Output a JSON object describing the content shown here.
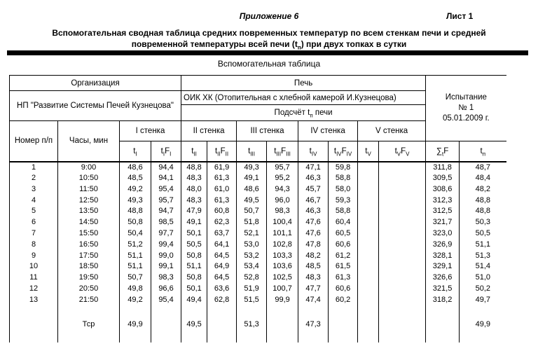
{
  "page": {
    "appendix_label": "Приложение 6",
    "sheet_label": "Лист 1",
    "title_line1": "Вспомогательная сводная таблица средних повременных температур по всем стенкам печи и средней",
    "title_line2_segments": [
      {
        "t": "повременной температуры всей печи (t"
      },
      {
        "t": "п",
        "sub": true
      },
      {
        "t": ") при двух топках в сутки"
      }
    ],
    "table_caption": "Вспомогательная таблица"
  },
  "table": {
    "org_header": "Организация",
    "org_value": "НП \"Развитие Системы Печей Кузнецова\"",
    "stove_header": "Печь",
    "stove_value": "ОИК ХК (Отопительная с хлебной камерой И.Кузнецова)",
    "calc_segments": [
      {
        "t": "Подсчёт t"
      },
      {
        "t": "п",
        "sub": true
      },
      {
        "t": " печи"
      }
    ],
    "test_lines": [
      "Испытание",
      "№ 1",
      "05.01.2009 г."
    ],
    "col_num": "Номер п/п",
    "col_time": "Часы, мин",
    "walls": [
      "I стенка",
      "II стенка",
      "III стенка",
      "IV стенка",
      "V стенка"
    ],
    "subheaders": [
      [
        {
          "t": "t"
        },
        {
          "t": "I",
          "sub": true
        }
      ],
      [
        {
          "t": "t"
        },
        {
          "t": "I",
          "sub": true
        },
        {
          "t": "F"
        },
        {
          "t": "I",
          "sub": true
        }
      ],
      [
        {
          "t": "t"
        },
        {
          "t": "II",
          "sub": true
        }
      ],
      [
        {
          "t": "t"
        },
        {
          "t": "II",
          "sub": true
        },
        {
          "t": "F"
        },
        {
          "t": "II",
          "sub": true
        }
      ],
      [
        {
          "t": "t"
        },
        {
          "t": "III",
          "sub": true
        }
      ],
      [
        {
          "t": "t"
        },
        {
          "t": "III",
          "sub": true
        },
        {
          "t": "F"
        },
        {
          "t": "III",
          "sub": true
        }
      ],
      [
        {
          "t": "t"
        },
        {
          "t": "IV",
          "sub": true
        }
      ],
      [
        {
          "t": "t"
        },
        {
          "t": "IV",
          "sub": true
        },
        {
          "t": "F"
        },
        {
          "t": "IV",
          "sub": true
        }
      ],
      [
        {
          "t": "t"
        },
        {
          "t": "V",
          "sub": true
        }
      ],
      [
        {
          "t": "t"
        },
        {
          "t": "V",
          "sub": true
        },
        {
          "t": "F"
        },
        {
          "t": "V",
          "sub": true
        }
      ],
      [
        {
          "t": "∑"
        },
        {
          "t": "t",
          "sub": true
        },
        {
          "t": "F"
        }
      ],
      [
        {
          "t": "t"
        },
        {
          "t": "п",
          "sub": true
        }
      ]
    ],
    "rows": [
      [
        "1",
        "9:00",
        "48,6",
        "94,4",
        "48,8",
        "61,9",
        "49,3",
        "95,7",
        "47,1",
        "59,8",
        "",
        "",
        "311,8",
        "48,7"
      ],
      [
        "2",
        "10:50",
        "48,5",
        "94,1",
        "48,3",
        "61,3",
        "49,1",
        "95,2",
        "46,3",
        "58,8",
        "",
        "",
        "309,5",
        "48,4"
      ],
      [
        "3",
        "11:50",
        "49,2",
        "95,4",
        "48,0",
        "61,0",
        "48,6",
        "94,3",
        "45,7",
        "58,0",
        "",
        "",
        "308,6",
        "48,2"
      ],
      [
        "4",
        "12:50",
        "49,3",
        "95,7",
        "48,3",
        "61,3",
        "49,5",
        "96,0",
        "46,7",
        "59,3",
        "",
        "",
        "312,3",
        "48,8"
      ],
      [
        "5",
        "13:50",
        "48,8",
        "94,7",
        "47,9",
        "60,8",
        "50,7",
        "98,3",
        "46,3",
        "58,8",
        "",
        "",
        "312,5",
        "48,8"
      ],
      [
        "6",
        "14:50",
        "50,8",
        "98,5",
        "49,1",
        "62,3",
        "51,8",
        "100,4",
        "47,6",
        "60,4",
        "",
        "",
        "321,7",
        "50,3"
      ],
      [
        "7",
        "15:50",
        "50,4",
        "97,7",
        "50,1",
        "63,7",
        "52,1",
        "101,1",
        "47,6",
        "60,5",
        "",
        "",
        "323,0",
        "50,5"
      ],
      [
        "8",
        "16:50",
        "51,2",
        "99,4",
        "50,5",
        "64,1",
        "53,0",
        "102,8",
        "47,8",
        "60,6",
        "",
        "",
        "326,9",
        "51,1"
      ],
      [
        "9",
        "17:50",
        "51,1",
        "99,0",
        "50,8",
        "64,5",
        "53,2",
        "103,3",
        "48,2",
        "61,2",
        "",
        "",
        "328,1",
        "51,3"
      ],
      [
        "10",
        "18:50",
        "51,1",
        "99,1",
        "51,1",
        "64,9",
        "53,4",
        "103,6",
        "48,5",
        "61,5",
        "",
        "",
        "329,1",
        "51,4"
      ],
      [
        "11",
        "19:50",
        "50,7",
        "98,3",
        "50,8",
        "64,5",
        "52,8",
        "102,5",
        "48,3",
        "61,3",
        "",
        "",
        "326,6",
        "51,0"
      ],
      [
        "12",
        "20:50",
        "49,8",
        "96,6",
        "50,1",
        "63,6",
        "51,9",
        "100,7",
        "47,7",
        "60,6",
        "",
        "",
        "321,5",
        "50,2"
      ],
      [
        "13",
        "21:50",
        "49,2",
        "95,4",
        "49,4",
        "62,8",
        "51,5",
        "99,9",
        "47,4",
        "60,2",
        "",
        "",
        "318,2",
        "49,7"
      ]
    ],
    "avg_row": [
      "",
      "Тср",
      "49,9",
      "",
      "49,5",
      "",
      "51,3",
      "",
      "47,3",
      "",
      "",
      "",
      "",
      "49,9"
    ]
  }
}
